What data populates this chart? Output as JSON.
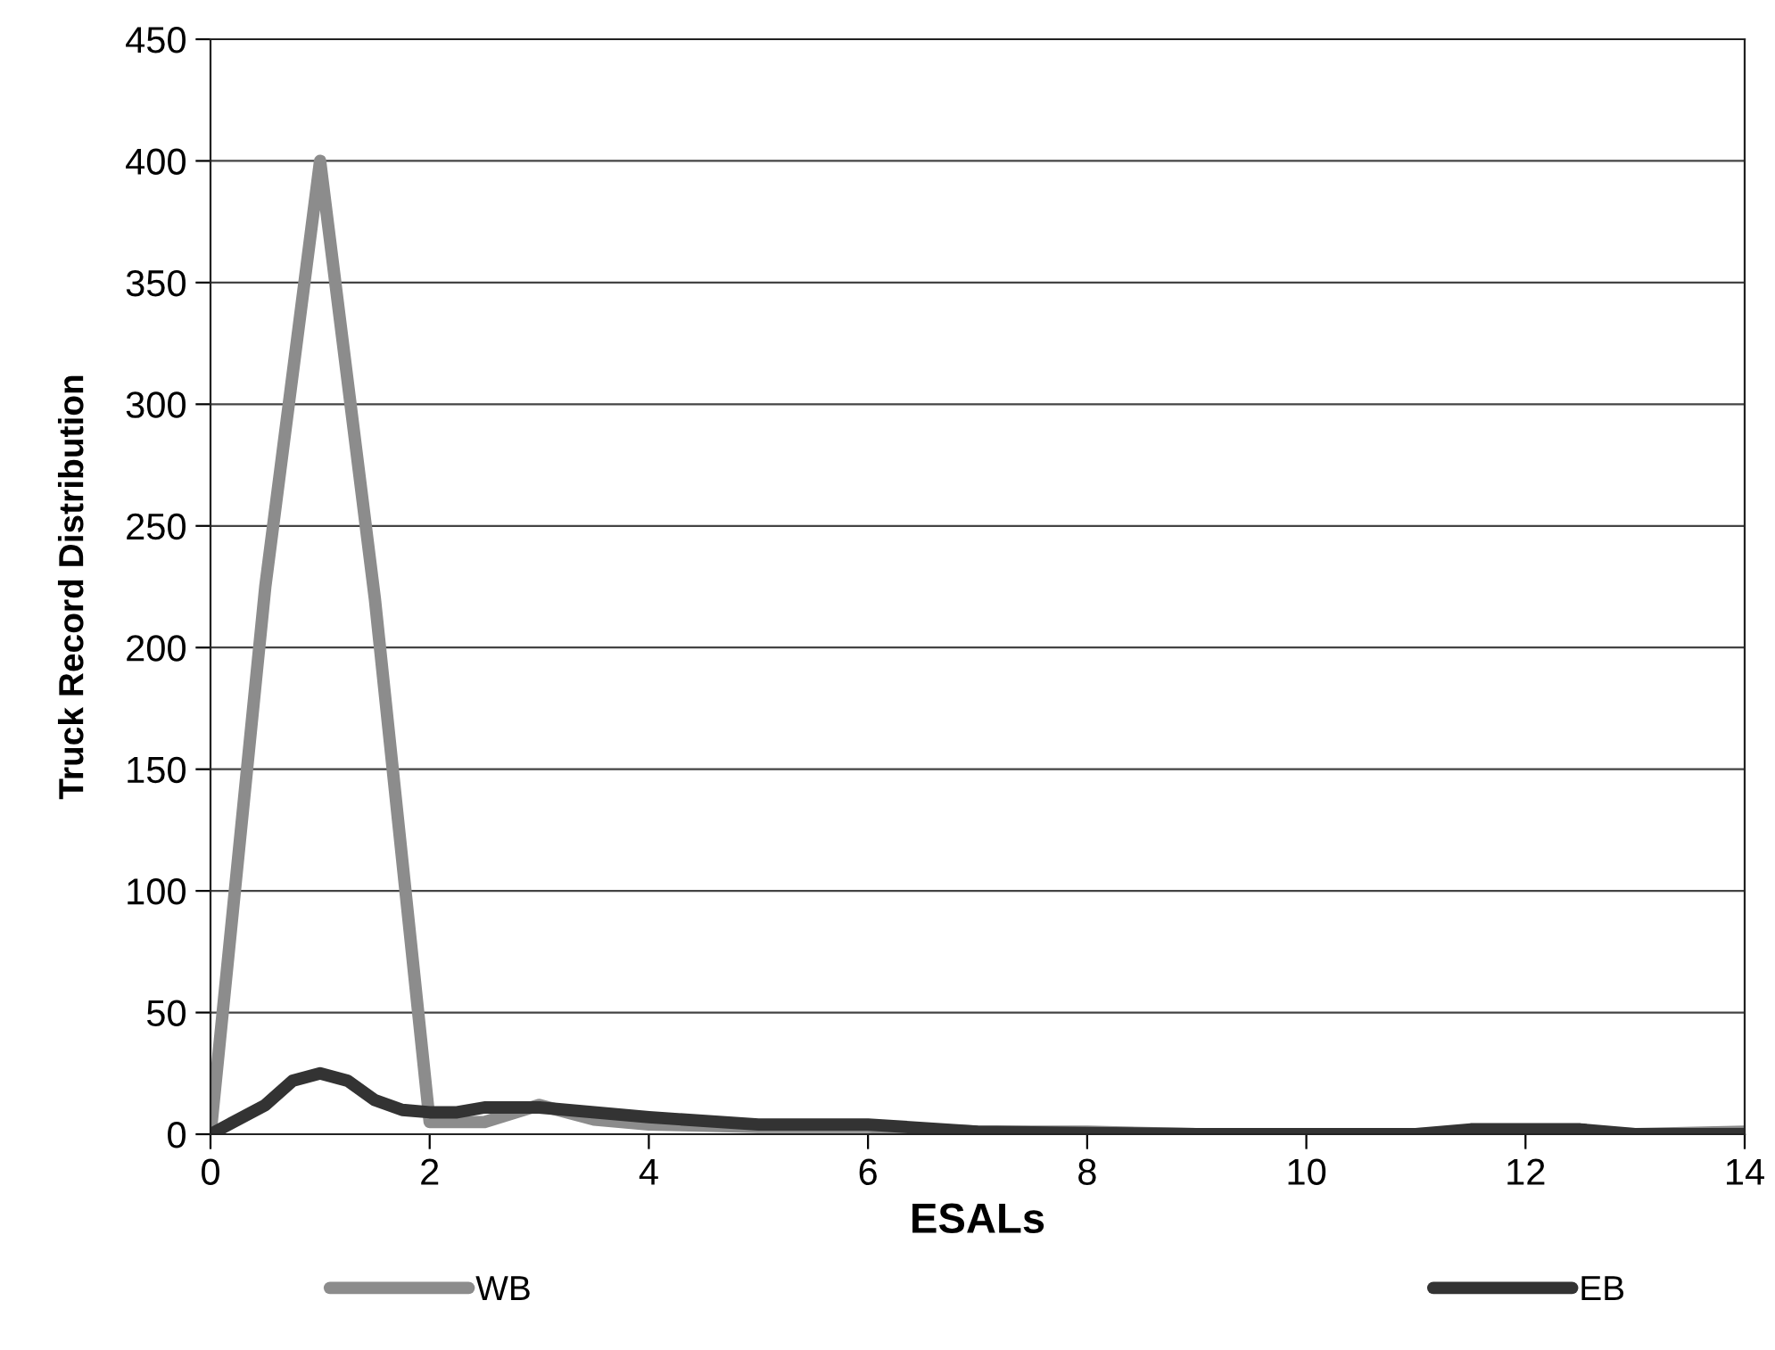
{
  "chart_data": {
    "type": "line",
    "xlabel": "ESALs",
    "ylabel": "Truck Record Distribution",
    "xlim": [
      0,
      14
    ],
    "xticks": [
      0,
      2,
      4,
      6,
      8,
      10,
      12,
      14
    ],
    "ylim": [
      0,
      450
    ],
    "yticks": [
      0,
      50,
      100,
      150,
      200,
      250,
      300,
      350,
      400,
      450
    ],
    "grid": "y",
    "legend": "bottom",
    "marker": "none",
    "line_style": "solid",
    "series": [
      {
        "name": "WB",
        "color": "#8c8c8c",
        "x": [
          0,
          0.5,
          1,
          1.5,
          2,
          2.5,
          3,
          3.5,
          4,
          5,
          6,
          7,
          8,
          9,
          10,
          11,
          12,
          13,
          14
        ],
        "values": [
          0,
          225,
          400,
          220,
          5,
          5,
          12,
          6,
          4,
          3,
          3,
          1,
          1,
          0,
          0,
          0,
          1,
          0,
          1
        ]
      },
      {
        "name": "EB",
        "color": "#333333",
        "x": [
          0,
          0.5,
          0.75,
          1,
          1.25,
          1.5,
          1.75,
          2,
          2.25,
          2.5,
          3,
          4,
          5,
          6,
          7,
          8,
          9,
          10,
          11,
          11.5,
          12,
          12.5,
          13,
          14
        ],
        "values": [
          0,
          12,
          22,
          25,
          22,
          14,
          10,
          9,
          9,
          11,
          11,
          7,
          4,
          4,
          1,
          0.5,
          0,
          0,
          0,
          2,
          2,
          2,
          0,
          0
        ]
      }
    ]
  }
}
